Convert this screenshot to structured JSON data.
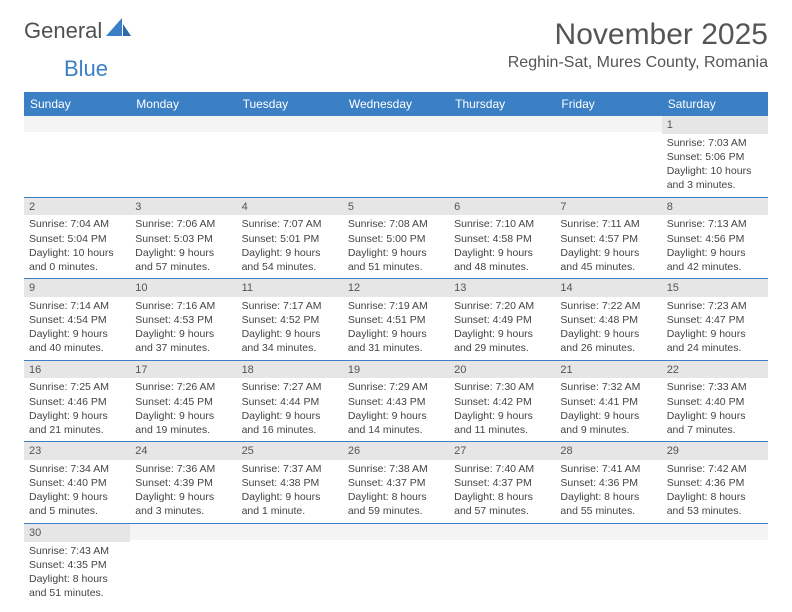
{
  "logo": {
    "text1": "General",
    "text2": "Blue"
  },
  "title": "November 2025",
  "location": "Reghin-Sat, Mures County, Romania",
  "colors": {
    "header_bg": "#3b7fc4",
    "daynum_bg": "#e6e6e6"
  },
  "day_headers": [
    "Sunday",
    "Monday",
    "Tuesday",
    "Wednesday",
    "Thursday",
    "Friday",
    "Saturday"
  ],
  "weeks": [
    [
      {
        "n": "",
        "lines": [
          "",
          "",
          "",
          ""
        ]
      },
      {
        "n": "",
        "lines": [
          "",
          "",
          "",
          ""
        ]
      },
      {
        "n": "",
        "lines": [
          "",
          "",
          "",
          ""
        ]
      },
      {
        "n": "",
        "lines": [
          "",
          "",
          "",
          ""
        ]
      },
      {
        "n": "",
        "lines": [
          "",
          "",
          "",
          ""
        ]
      },
      {
        "n": "",
        "lines": [
          "",
          "",
          "",
          ""
        ]
      },
      {
        "n": "1",
        "lines": [
          "Sunrise: 7:03 AM",
          "Sunset: 5:06 PM",
          "Daylight: 10 hours",
          "and 3 minutes."
        ]
      }
    ],
    [
      {
        "n": "2",
        "lines": [
          "Sunrise: 7:04 AM",
          "Sunset: 5:04 PM",
          "Daylight: 10 hours",
          "and 0 minutes."
        ]
      },
      {
        "n": "3",
        "lines": [
          "Sunrise: 7:06 AM",
          "Sunset: 5:03 PM",
          "Daylight: 9 hours",
          "and 57 minutes."
        ]
      },
      {
        "n": "4",
        "lines": [
          "Sunrise: 7:07 AM",
          "Sunset: 5:01 PM",
          "Daylight: 9 hours",
          "and 54 minutes."
        ]
      },
      {
        "n": "5",
        "lines": [
          "Sunrise: 7:08 AM",
          "Sunset: 5:00 PM",
          "Daylight: 9 hours",
          "and 51 minutes."
        ]
      },
      {
        "n": "6",
        "lines": [
          "Sunrise: 7:10 AM",
          "Sunset: 4:58 PM",
          "Daylight: 9 hours",
          "and 48 minutes."
        ]
      },
      {
        "n": "7",
        "lines": [
          "Sunrise: 7:11 AM",
          "Sunset: 4:57 PM",
          "Daylight: 9 hours",
          "and 45 minutes."
        ]
      },
      {
        "n": "8",
        "lines": [
          "Sunrise: 7:13 AM",
          "Sunset: 4:56 PM",
          "Daylight: 9 hours",
          "and 42 minutes."
        ]
      }
    ],
    [
      {
        "n": "9",
        "lines": [
          "Sunrise: 7:14 AM",
          "Sunset: 4:54 PM",
          "Daylight: 9 hours",
          "and 40 minutes."
        ]
      },
      {
        "n": "10",
        "lines": [
          "Sunrise: 7:16 AM",
          "Sunset: 4:53 PM",
          "Daylight: 9 hours",
          "and 37 minutes."
        ]
      },
      {
        "n": "11",
        "lines": [
          "Sunrise: 7:17 AM",
          "Sunset: 4:52 PM",
          "Daylight: 9 hours",
          "and 34 minutes."
        ]
      },
      {
        "n": "12",
        "lines": [
          "Sunrise: 7:19 AM",
          "Sunset: 4:51 PM",
          "Daylight: 9 hours",
          "and 31 minutes."
        ]
      },
      {
        "n": "13",
        "lines": [
          "Sunrise: 7:20 AM",
          "Sunset: 4:49 PM",
          "Daylight: 9 hours",
          "and 29 minutes."
        ]
      },
      {
        "n": "14",
        "lines": [
          "Sunrise: 7:22 AM",
          "Sunset: 4:48 PM",
          "Daylight: 9 hours",
          "and 26 minutes."
        ]
      },
      {
        "n": "15",
        "lines": [
          "Sunrise: 7:23 AM",
          "Sunset: 4:47 PM",
          "Daylight: 9 hours",
          "and 24 minutes."
        ]
      }
    ],
    [
      {
        "n": "16",
        "lines": [
          "Sunrise: 7:25 AM",
          "Sunset: 4:46 PM",
          "Daylight: 9 hours",
          "and 21 minutes."
        ]
      },
      {
        "n": "17",
        "lines": [
          "Sunrise: 7:26 AM",
          "Sunset: 4:45 PM",
          "Daylight: 9 hours",
          "and 19 minutes."
        ]
      },
      {
        "n": "18",
        "lines": [
          "Sunrise: 7:27 AM",
          "Sunset: 4:44 PM",
          "Daylight: 9 hours",
          "and 16 minutes."
        ]
      },
      {
        "n": "19",
        "lines": [
          "Sunrise: 7:29 AM",
          "Sunset: 4:43 PM",
          "Daylight: 9 hours",
          "and 14 minutes."
        ]
      },
      {
        "n": "20",
        "lines": [
          "Sunrise: 7:30 AM",
          "Sunset: 4:42 PM",
          "Daylight: 9 hours",
          "and 11 minutes."
        ]
      },
      {
        "n": "21",
        "lines": [
          "Sunrise: 7:32 AM",
          "Sunset: 4:41 PM",
          "Daylight: 9 hours",
          "and 9 minutes."
        ]
      },
      {
        "n": "22",
        "lines": [
          "Sunrise: 7:33 AM",
          "Sunset: 4:40 PM",
          "Daylight: 9 hours",
          "and 7 minutes."
        ]
      }
    ],
    [
      {
        "n": "23",
        "lines": [
          "Sunrise: 7:34 AM",
          "Sunset: 4:40 PM",
          "Daylight: 9 hours",
          "and 5 minutes."
        ]
      },
      {
        "n": "24",
        "lines": [
          "Sunrise: 7:36 AM",
          "Sunset: 4:39 PM",
          "Daylight: 9 hours",
          "and 3 minutes."
        ]
      },
      {
        "n": "25",
        "lines": [
          "Sunrise: 7:37 AM",
          "Sunset: 4:38 PM",
          "Daylight: 9 hours",
          "and 1 minute."
        ]
      },
      {
        "n": "26",
        "lines": [
          "Sunrise: 7:38 AM",
          "Sunset: 4:37 PM",
          "Daylight: 8 hours",
          "and 59 minutes."
        ]
      },
      {
        "n": "27",
        "lines": [
          "Sunrise: 7:40 AM",
          "Sunset: 4:37 PM",
          "Daylight: 8 hours",
          "and 57 minutes."
        ]
      },
      {
        "n": "28",
        "lines": [
          "Sunrise: 7:41 AM",
          "Sunset: 4:36 PM",
          "Daylight: 8 hours",
          "and 55 minutes."
        ]
      },
      {
        "n": "29",
        "lines": [
          "Sunrise: 7:42 AM",
          "Sunset: 4:36 PM",
          "Daylight: 8 hours",
          "and 53 minutes."
        ]
      }
    ],
    [
      {
        "n": "30",
        "lines": [
          "Sunrise: 7:43 AM",
          "Sunset: 4:35 PM",
          "Daylight: 8 hours",
          "and 51 minutes."
        ]
      },
      {
        "n": "",
        "lines": [
          "",
          "",
          "",
          ""
        ]
      },
      {
        "n": "",
        "lines": [
          "",
          "",
          "",
          ""
        ]
      },
      {
        "n": "",
        "lines": [
          "",
          "",
          "",
          ""
        ]
      },
      {
        "n": "",
        "lines": [
          "",
          "",
          "",
          ""
        ]
      },
      {
        "n": "",
        "lines": [
          "",
          "",
          "",
          ""
        ]
      },
      {
        "n": "",
        "lines": [
          "",
          "",
          "",
          ""
        ]
      }
    ]
  ]
}
